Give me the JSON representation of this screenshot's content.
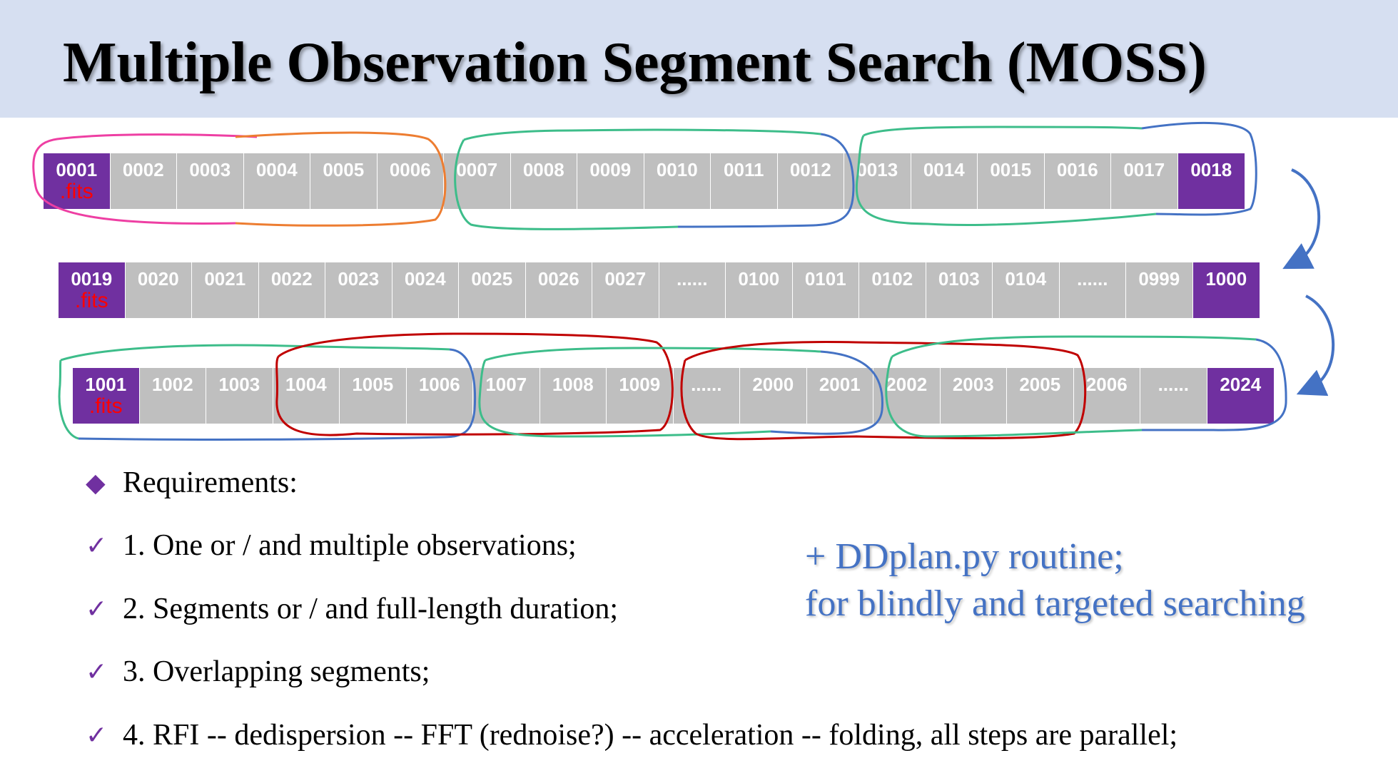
{
  "title": "Multiple Observation Segment Search (MOSS)",
  "fits_suffix": ".fits",
  "file_rows": [
    [
      {
        "label": "0001",
        "fits": true
      },
      {
        "label": "0002"
      },
      {
        "label": "0003"
      },
      {
        "label": "0004"
      },
      {
        "label": "0005"
      },
      {
        "label": "0006"
      },
      {
        "label": "0007"
      },
      {
        "label": "0008"
      },
      {
        "label": "0009"
      },
      {
        "label": "0010"
      },
      {
        "label": "0011"
      },
      {
        "label": "0012"
      },
      {
        "label": "0013"
      },
      {
        "label": "0014"
      },
      {
        "label": "0015"
      },
      {
        "label": "0016"
      },
      {
        "label": "0017"
      },
      {
        "label": "0018",
        "highlight": true
      }
    ],
    [
      {
        "label": "0019",
        "fits": true
      },
      {
        "label": "0020"
      },
      {
        "label": "0021"
      },
      {
        "label": "0022"
      },
      {
        "label": "0023"
      },
      {
        "label": "0024"
      },
      {
        "label": "0025"
      },
      {
        "label": "0026"
      },
      {
        "label": "0027"
      },
      {
        "label": "......"
      },
      {
        "label": "0100"
      },
      {
        "label": "0101"
      },
      {
        "label": "0102"
      },
      {
        "label": "0103"
      },
      {
        "label": "0104"
      },
      {
        "label": "......"
      },
      {
        "label": "0999"
      },
      {
        "label": "1000",
        "highlight": true
      }
    ],
    [
      {
        "label": "1001",
        "fits": true
      },
      {
        "label": "1002"
      },
      {
        "label": "1003"
      },
      {
        "label": "1004"
      },
      {
        "label": "1005"
      },
      {
        "label": "1006"
      },
      {
        "label": "1007"
      },
      {
        "label": "1008"
      },
      {
        "label": "1009"
      },
      {
        "label": "......"
      },
      {
        "label": "2000"
      },
      {
        "label": "2001"
      },
      {
        "label": "2002"
      },
      {
        "label": "2003"
      },
      {
        "label": "2005"
      },
      {
        "label": "2006"
      },
      {
        "label": "......"
      },
      {
        "label": "2024",
        "highlight": true
      }
    ]
  ],
  "requirements": {
    "heading": "Requirements:",
    "items": [
      "1. One or / and multiple observations;",
      "2. Segments or / and full-length duration;",
      "3. Overlapping segments;",
      "4. RFI -- dedispersion -- FFT (rednoise?) -- acceleration -- folding, all steps are parallel;"
    ]
  },
  "side_note": {
    "line1": "+ DDplan.py routine;",
    "line2": "for blindly and targeted searching"
  },
  "colors": {
    "title_band": "#d6dff1",
    "file_cell": "#bfbfbf",
    "fits_cell": "#7030a0",
    "fits_text": "#ff0000",
    "bullet": "#7030a0",
    "note_text": "#4472c4",
    "loop_pink": "#ee3fa3",
    "loop_orange": "#ed7d31",
    "loop_green": "#3dbd8a",
    "loop_blue": "#4472c4",
    "loop_red": "#c00000"
  },
  "icons": {
    "heading_bullet": "diamond-icon",
    "item_bullet": "checkmark-icon",
    "row_connector": "curved-arrow-icon"
  }
}
